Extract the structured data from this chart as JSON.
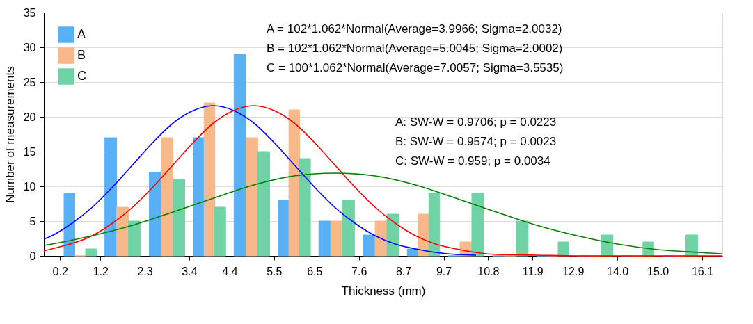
{
  "chart_data": {
    "type": "histogram",
    "xlabel": "Thickness (mm)",
    "ylabel": "Number of measurements",
    "bins": [
      0.2,
      1.2,
      2.3,
      3.4,
      4.4,
      5.5,
      6.5,
      7.6,
      8.7,
      9.7,
      10.8,
      11.9,
      12.9,
      14.0,
      15.0,
      16.1
    ],
    "series": [
      {
        "name": "A",
        "color": "#5ab0f5",
        "values": [
          9,
          17,
          12,
          17,
          29,
          8,
          5,
          3,
          1,
          0,
          0,
          0,
          0,
          0,
          0
        ]
      },
      {
        "name": "B",
        "color": "#f8b88a",
        "values": [
          0,
          7,
          17,
          22,
          17,
          21,
          5,
          5,
          6,
          2,
          0,
          0,
          0,
          0,
          0
        ]
      },
      {
        "name": "C",
        "color": "#6fd3a6",
        "values": [
          1,
          5,
          11,
          7,
          15,
          14,
          8,
          6,
          9,
          9,
          5,
          2,
          3,
          2,
          3
        ]
      },
      {
        "type": "line",
        "color": "#0000ff",
        "x": [
          -0.2,
          0,
          0.5,
          1,
          1.5,
          2,
          2.5,
          3,
          3.5,
          4,
          4.5,
          5,
          5.5,
          6,
          6.5,
          7,
          7.5,
          8,
          8.5,
          9,
          10,
          10.5
        ],
        "values": [
          2.4,
          2.9,
          4.7,
          7.0,
          9.9,
          13.1,
          16.3,
          19.1,
          20.9,
          21.6,
          20.9,
          19.1,
          16.3,
          13.1,
          9.9,
          7.0,
          4.7,
          2.9,
          1.7,
          1.0,
          0.2,
          0.1
        ]
      },
      {
        "type": "line",
        "color": "#ff0000",
        "x": [
          -0.2,
          0,
          1,
          1.5,
          2,
          2.5,
          3,
          3.5,
          4,
          4.5,
          5,
          5.5,
          6,
          6.5,
          7,
          7.5,
          8,
          8.5,
          9,
          9.5,
          10,
          11,
          12,
          13,
          16.6
        ],
        "values": [
          0.7,
          1.0,
          2.9,
          4.7,
          7.0,
          9.9,
          13.1,
          16.3,
          19.1,
          20.9,
          21.6,
          20.9,
          19.1,
          16.3,
          13.1,
          9.9,
          7.0,
          4.7,
          2.9,
          1.7,
          1.0,
          0.2,
          0.1,
          0.0,
          0.0
        ]
      },
      {
        "type": "line",
        "color": "#008000",
        "x": [
          -0.2,
          0,
          1,
          2,
          3,
          4,
          5,
          6,
          7,
          8,
          9,
          10,
          11,
          12,
          13,
          14,
          15,
          16,
          16.6
        ],
        "values": [
          1.5,
          1.7,
          2.9,
          4.4,
          6.3,
          8.3,
          10.2,
          11.5,
          11.9,
          11.5,
          10.2,
          8.3,
          6.3,
          4.4,
          2.9,
          1.7,
          0.9,
          0.5,
          0.3
        ]
      }
    ],
    "xlim": [
      -0.2,
      16.6
    ],
    "xticks": [
      0.2,
      1.2,
      2.3,
      3.4,
      4.4,
      5.5,
      6.5,
      7.6,
      8.7,
      9.7,
      10.8,
      11.9,
      12.9,
      {
        "value": 14,
        "label": "14.0"
      },
      {
        "value": 15,
        "label": "15.0"
      },
      16.1
    ],
    "ylim": [
      0,
      35
    ],
    "yticks": [
      0,
      5,
      10,
      15,
      20,
      25,
      30,
      35
    ],
    "grid": "y",
    "legend": "top left",
    "annotations": [
      "A = 102*1.062*Normal(Average=3.9966; Sigma=2.0032)",
      "B = 102*1.062*Normal(Average=5.0045; Sigma=2.0002)",
      "C = 100*1.062*Normal(Average=7.0057; Sigma=3.5535)",
      "A:   SW-W = 0.9706; p = 0.0223",
      "B:   SW-W = 0.9574; p = 0.0023",
      "C:   SW-W = 0.959; p = 0.0034"
    ]
  }
}
